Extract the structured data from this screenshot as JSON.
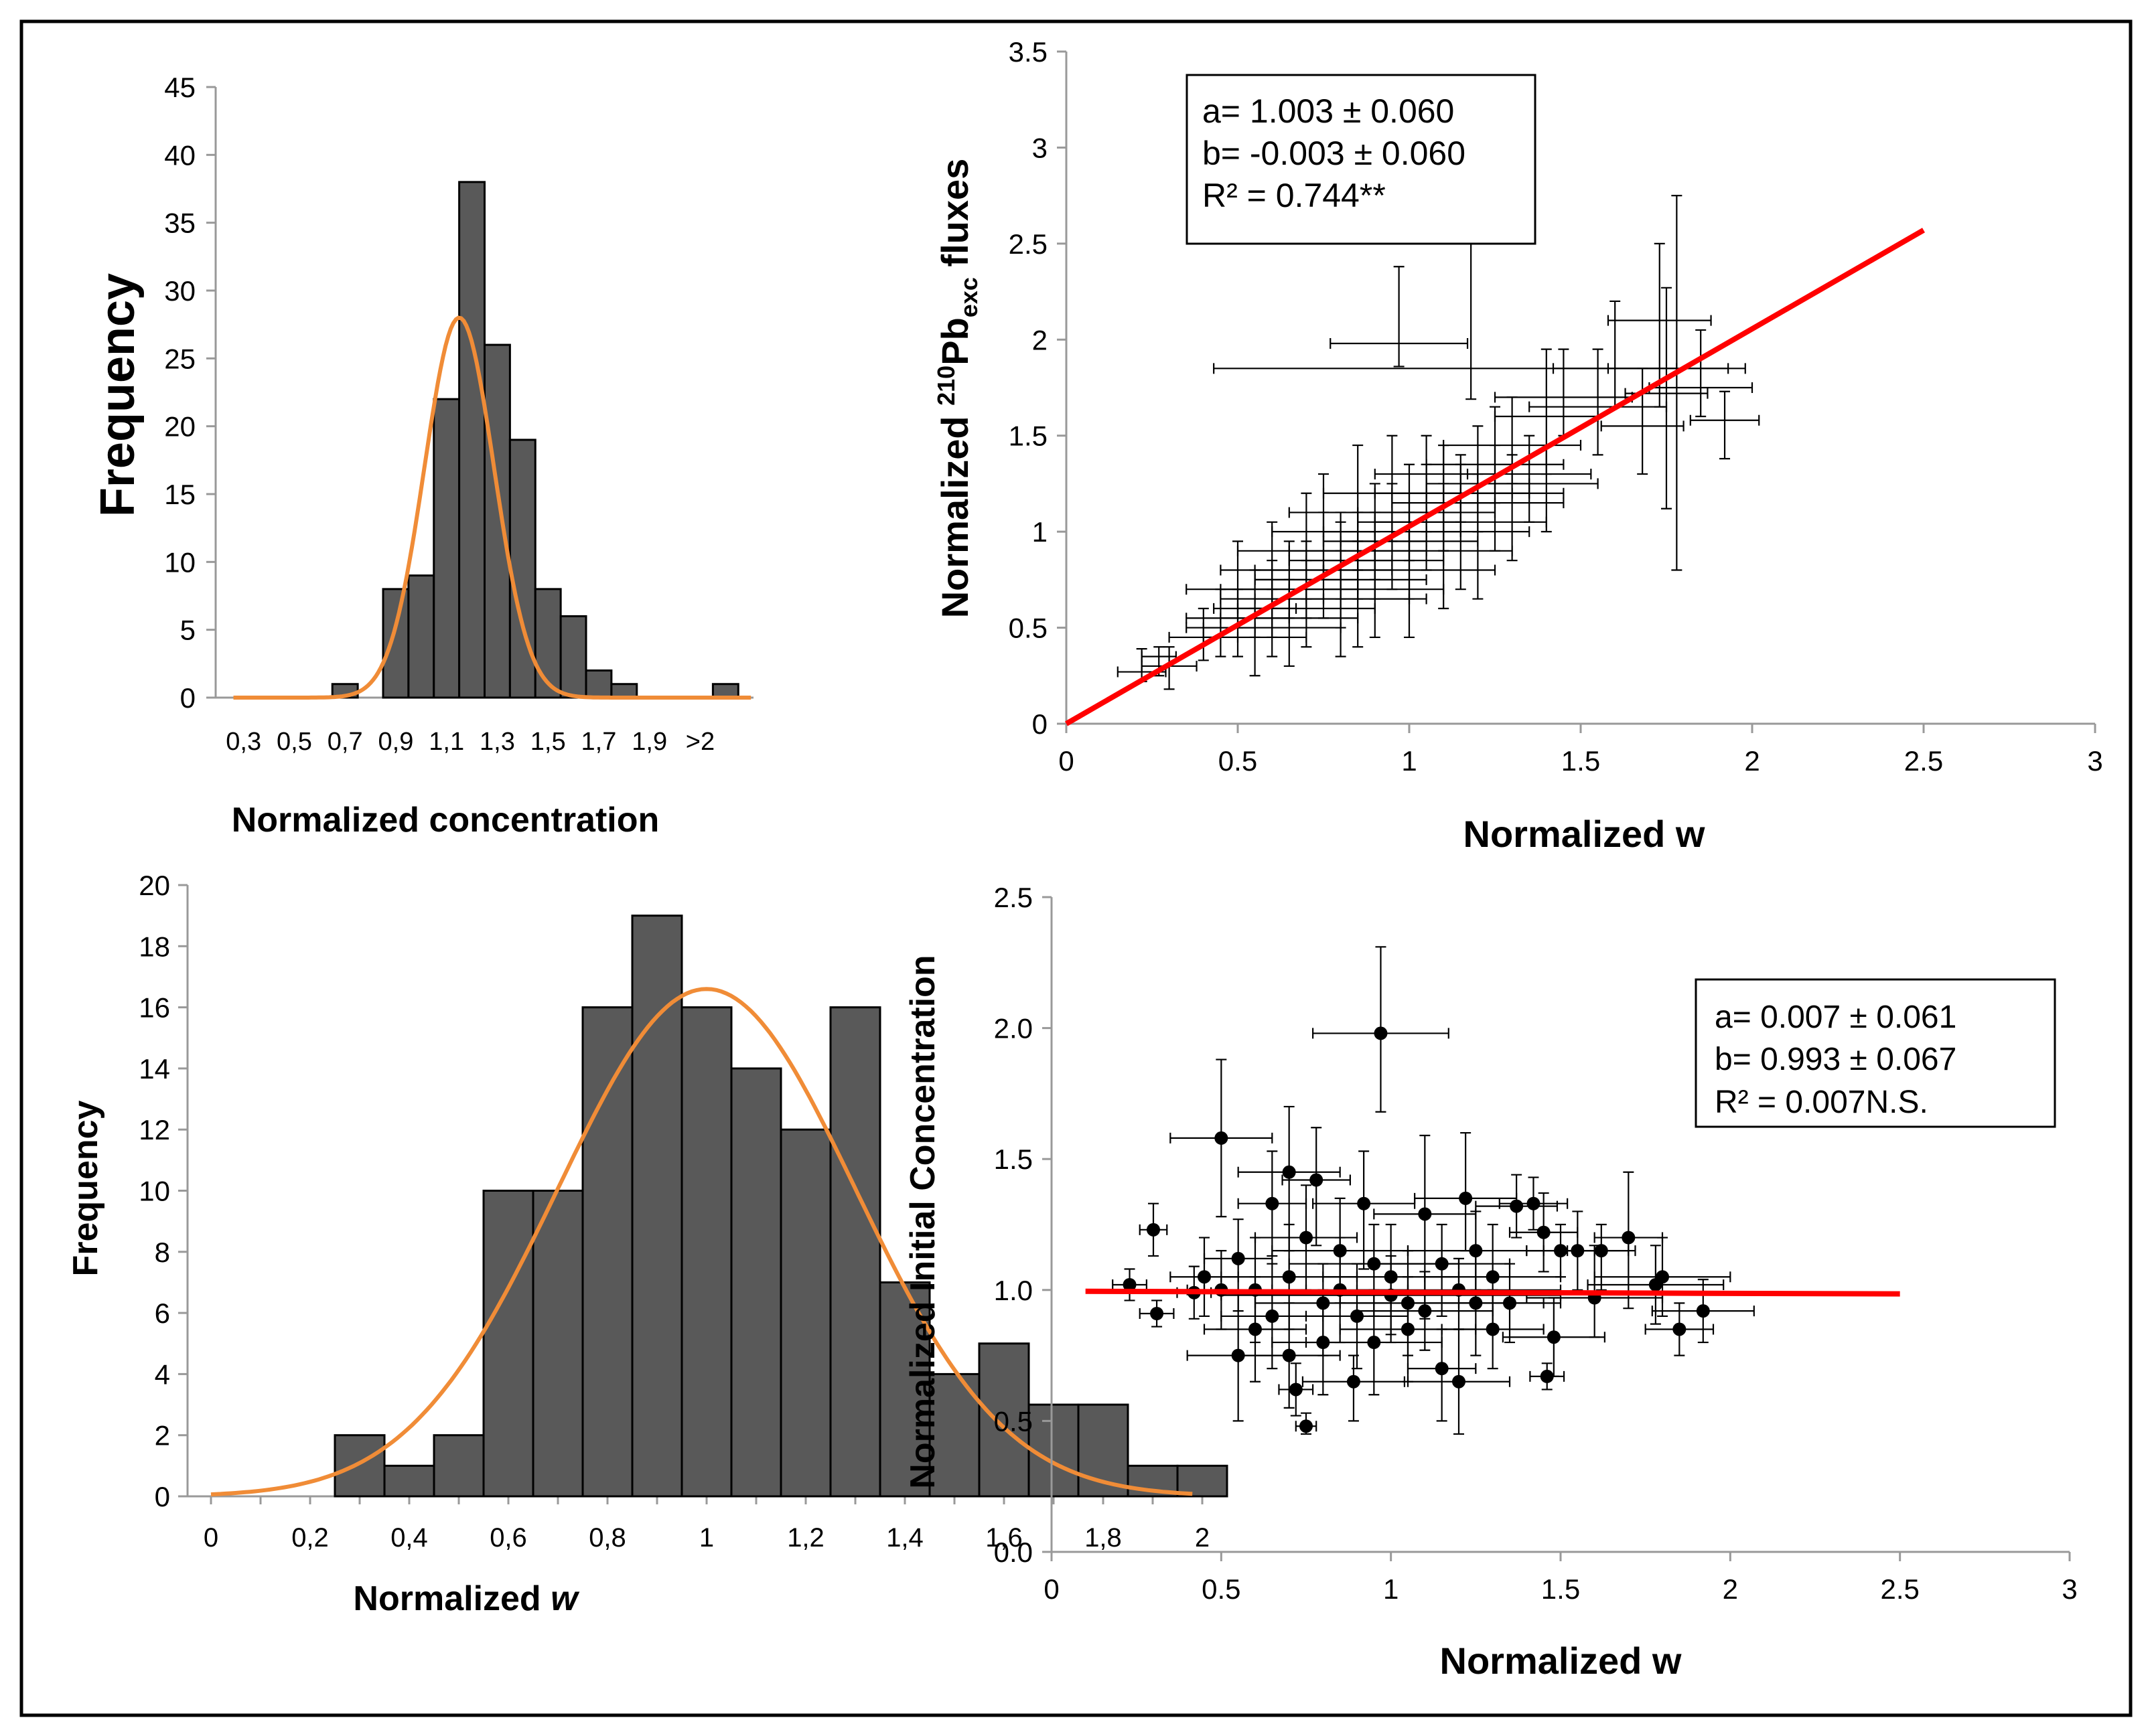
{
  "chart_data": [
    {
      "id": "hist-concentration",
      "type": "bar",
      "title": "",
      "xlabel": "Normalized concentration",
      "ylabel": "Frequency",
      "ylim": [
        0,
        45
      ],
      "yticks": [
        0,
        5,
        10,
        15,
        20,
        25,
        30,
        35,
        40,
        45
      ],
      "xtick_labels": [
        "0,3",
        "0,5",
        "0,7",
        "0,9",
        "1,1",
        "1,3",
        "1,5",
        "1,7",
        "1,9",
        ">2"
      ],
      "bin_start": 0.3,
      "bin_width": 0.1,
      "values": [
        0,
        0,
        0,
        0,
        1,
        0,
        8,
        9,
        22,
        38,
        26,
        19,
        8,
        6,
        2,
        1,
        0,
        0,
        0,
        1
      ],
      "curve_color": "#F08C37",
      "curve": {
        "mean": 1.2,
        "sd": 0.137,
        "peak": 28
      },
      "bar_color": "#595959"
    },
    {
      "id": "hist-w",
      "type": "bar",
      "title": "",
      "xlabel": "Normalized w",
      "ylabel": "Frequency",
      "ylim": [
        0,
        20
      ],
      "yticks": [
        0,
        2,
        4,
        6,
        8,
        10,
        12,
        14,
        16,
        18,
        20
      ],
      "xtick_labels": [
        "0",
        "0,2",
        "0,4",
        "0,6",
        "0,8",
        "1",
        "1,2",
        "1,4",
        "1,6",
        "1,8",
        "2"
      ],
      "bin_start": 0.25,
      "bin_width": 0.1,
      "values": [
        2,
        1,
        2,
        10,
        10,
        16,
        19,
        16,
        14,
        12,
        16,
        7,
        4,
        5,
        3,
        3,
        1,
        1
      ],
      "curve_color": "#F08C37",
      "curve": {
        "mean": 1.0,
        "sd": 0.3,
        "peak": 16.6
      },
      "bar_color": "#595959"
    },
    {
      "id": "scatter-fluxes",
      "type": "scatter",
      "title": "",
      "xlabel": "Normalized w",
      "ylabel": "Normalized 210Pbexc fluxes",
      "xlim": [
        0,
        3
      ],
      "ylim": [
        0,
        3.5
      ],
      "xticks": [
        "0",
        "0.5",
        "1",
        "1.5",
        "2",
        "2.5",
        "3"
      ],
      "yticks": [
        "0",
        "0.5",
        "1",
        "1.5",
        "2",
        "2.5",
        "3",
        "3.5"
      ],
      "fit_line": {
        "x": [
          0,
          2.5
        ],
        "y": [
          0,
          2.57
        ],
        "color": "#FF0000"
      },
      "annotation": [
        "a= 1.003 ± 0.060",
        "b= -0.003 ± 0.060",
        "R² = 0.744**"
      ],
      "points": [
        [
          0.97,
          1.98,
          0.2,
          0.4,
          0.12
        ],
        [
          1.18,
          1.85,
          0.75,
          0.7,
          0.16
        ],
        [
          1.78,
          1.85,
          0.2,
          0.9,
          1.05
        ],
        [
          1.73,
          2.1,
          0.15,
          0.4,
          0.45
        ],
        [
          1.75,
          1.72,
          0.12,
          0.55,
          0.6
        ],
        [
          1.6,
          1.85,
          0.18,
          0.35,
          0.2
        ],
        [
          1.85,
          1.75,
          0.15,
          0.3,
          0.15
        ],
        [
          1.55,
          1.65,
          0.2,
          0.3,
          0.25
        ],
        [
          1.45,
          1.7,
          0.2,
          0.25,
          0.2
        ],
        [
          1.4,
          1.6,
          0.15,
          0.35,
          0.3
        ],
        [
          1.68,
          1.55,
          0.12,
          0.3,
          0.25
        ],
        [
          1.92,
          1.58,
          0.1,
          0.15,
          0.2
        ],
        [
          1.3,
          1.45,
          0.2,
          0.25,
          0.2
        ],
        [
          1.35,
          1.3,
          0.18,
          0.2,
          0.25
        ],
        [
          1.25,
          1.35,
          0.2,
          0.3,
          0.2
        ],
        [
          1.2,
          1.25,
          0.15,
          0.3,
          0.25
        ],
        [
          1.15,
          1.2,
          0.2,
          0.2,
          0.15
        ],
        [
          1.1,
          1.15,
          0.15,
          0.3,
          0.25
        ],
        [
          1.05,
          1.1,
          0.2,
          0.25,
          0.3
        ],
        [
          1.0,
          1.05,
          0.15,
          0.3,
          0.2
        ],
        [
          0.95,
          1.0,
          0.2,
          0.25,
          0.3
        ],
        [
          0.9,
          0.95,
          0.15,
          0.3,
          0.2
        ],
        [
          0.85,
          0.9,
          0.2,
          0.2,
          0.25
        ],
        [
          0.8,
          0.85,
          0.15,
          0.25,
          0.2
        ],
        [
          0.75,
          0.8,
          0.2,
          0.3,
          0.25
        ],
        [
          0.7,
          0.75,
          0.15,
          0.2,
          0.2
        ],
        [
          0.65,
          0.7,
          0.2,
          0.25,
          0.15
        ],
        [
          0.6,
          0.65,
          0.15,
          0.2,
          0.2
        ],
        [
          0.55,
          0.6,
          0.12,
          0.2,
          0.15
        ],
        [
          0.5,
          0.55,
          0.15,
          0.15,
          0.2
        ],
        [
          0.45,
          0.5,
          0.1,
          0.2,
          0.15
        ],
        [
          0.4,
          0.45,
          0.1,
          0.15,
          0.12
        ],
        [
          0.3,
          0.3,
          0.08,
          0.1,
          0.12
        ],
        [
          0.27,
          0.35,
          0.05,
          0.05,
          0.1
        ],
        [
          0.22,
          0.27,
          0.07,
          0.12,
          0.05
        ],
        [
          1.0,
          0.8,
          0.25,
          0.3,
          0.35
        ],
        [
          0.9,
          0.7,
          0.2,
          0.3,
          0.25
        ],
        [
          0.8,
          0.65,
          0.25,
          0.25,
          0.3
        ],
        [
          1.1,
          0.9,
          0.2,
          0.35,
          0.3
        ],
        [
          1.2,
          1.0,
          0.15,
          0.3,
          0.35
        ],
        [
          1.3,
          1.15,
          0.15,
          0.25,
          0.3
        ],
        [
          0.7,
          0.9,
          0.2,
          0.3,
          0.25
        ],
        [
          0.6,
          0.8,
          0.15,
          0.25,
          0.2
        ],
        [
          0.85,
          1.1,
          0.2,
          0.35,
          0.3
        ],
        [
          0.75,
          1.0,
          0.15,
          0.3,
          0.25
        ],
        [
          1.05,
          1.3,
          0.15,
          0.2,
          0.3
        ],
        [
          0.95,
          1.2,
          0.2,
          0.3,
          0.25
        ],
        [
          0.65,
          0.55,
          0.2,
          0.2,
          0.25
        ],
        [
          0.55,
          0.45,
          0.15,
          0.15,
          0.2
        ],
        [
          0.5,
          0.7,
          0.15,
          0.25,
          0.2
        ],
        [
          1.15,
          1.05,
          0.25,
          0.3,
          0.35
        ],
        [
          1.25,
          1.2,
          0.2,
          0.25,
          0.3
        ],
        [
          1.4,
          1.25,
          0.15,
          0.2,
          0.25
        ],
        [
          0.8,
          0.75,
          0.25,
          0.3,
          0.25
        ],
        [
          0.9,
          0.85,
          0.2,
          0.25,
          0.2
        ],
        [
          1.0,
          0.95,
          0.2,
          0.25,
          0.3
        ],
        [
          0.7,
          0.6,
          0.2,
          0.25,
          0.2
        ],
        [
          0.6,
          0.5,
          0.2,
          0.2,
          0.15
        ],
        [
          1.1,
          1.2,
          0.2,
          0.25,
          0.3
        ],
        [
          0.85,
          0.65,
          0.15,
          0.3,
          0.25
        ]
      ]
    },
    {
      "id": "scatter-concentration",
      "type": "scatter",
      "title": "",
      "xlabel": "Normalized w",
      "ylabel": "Normalized Initial Concentration",
      "xlim": [
        0,
        3
      ],
      "ylim": [
        0,
        2.5
      ],
      "xticks": [
        "0",
        "0.5",
        "1",
        "1.5",
        "2",
        "2.5",
        "3"
      ],
      "yticks": [
        "0.0",
        "0.5",
        "1.0",
        "1.5",
        "2.0",
        "2.5"
      ],
      "fit_line": {
        "x": [
          0.1,
          2.5
        ],
        "y": [
          0.995,
          0.985
        ],
        "color": "#FF0000"
      },
      "annotation": [
        "a= 0.007 ± 0.061",
        "b= 0.993 ± 0.067",
        "R² = 0.007N.S."
      ],
      "points": [
        [
          0.97,
          1.98,
          0.2,
          0.33,
          0.3
        ],
        [
          0.5,
          1.58,
          0.15,
          0.3,
          0.3
        ],
        [
          0.7,
          1.45,
          0.15,
          0.25,
          0.3
        ],
        [
          0.78,
          1.42,
          0.1,
          0.2,
          0.25
        ],
        [
          0.3,
          1.23,
          0.04,
          0.1,
          0.1
        ],
        [
          0.23,
          1.02,
          0.05,
          0.06,
          0.06
        ],
        [
          0.31,
          0.91,
          0.05,
          0.05,
          0.05
        ],
        [
          0.42,
          0.99,
          0.05,
          0.1,
          0.1
        ],
        [
          0.55,
          1.12,
          0.1,
          0.15,
          0.2
        ],
        [
          0.6,
          1.0,
          0.15,
          0.2,
          0.2
        ],
        [
          0.65,
          1.33,
          0.1,
          0.2,
          0.2
        ],
        [
          0.75,
          0.48,
          0.03,
          0.05,
          0.03
        ],
        [
          0.72,
          0.62,
          0.05,
          0.1,
          0.1
        ],
        [
          0.8,
          0.8,
          0.15,
          0.2,
          0.2
        ],
        [
          0.85,
          1.0,
          0.2,
          0.2,
          0.2
        ],
        [
          0.9,
          0.9,
          0.15,
          0.2,
          0.2
        ],
        [
          0.92,
          1.33,
          0.15,
          0.2,
          0.25
        ],
        [
          1.0,
          1.05,
          0.2,
          0.2,
          0.25
        ],
        [
          1.05,
          0.95,
          0.2,
          0.2,
          0.2
        ],
        [
          1.1,
          1.29,
          0.15,
          0.3,
          0.4
        ],
        [
          1.15,
          0.7,
          0.1,
          0.15,
          0.2
        ],
        [
          1.2,
          0.65,
          0.15,
          0.2,
          0.2
        ],
        [
          1.22,
          1.35,
          0.15,
          0.25,
          0.2
        ],
        [
          1.25,
          0.95,
          0.2,
          0.2,
          0.2
        ],
        [
          1.3,
          1.05,
          0.2,
          0.2,
          0.2
        ],
        [
          1.37,
          1.32,
          0.12,
          0.12,
          0.12
        ],
        [
          1.42,
          1.33,
          0.1,
          0.1,
          0.1
        ],
        [
          1.45,
          1.22,
          0.1,
          0.15,
          0.15
        ],
        [
          1.48,
          0.82,
          0.15,
          0.15,
          0.15
        ],
        [
          1.5,
          1.15,
          0.1,
          0.1,
          0.1
        ],
        [
          1.55,
          1.15,
          0.15,
          0.15,
          0.15
        ],
        [
          1.6,
          0.97,
          0.2,
          0.2,
          0.15
        ],
        [
          1.62,
          1.15,
          0.1,
          0.1,
          0.15
        ],
        [
          1.7,
          1.2,
          0.1,
          0.25,
          0.27
        ],
        [
          1.78,
          1.02,
          0.2,
          0.15,
          0.15
        ],
        [
          1.8,
          1.05,
          0.2,
          0.15,
          0.15
        ],
        [
          1.85,
          0.85,
          0.1,
          0.1,
          0.1
        ],
        [
          1.92,
          0.92,
          0.15,
          0.12,
          0.12
        ],
        [
          0.89,
          0.65,
          0.15,
          0.1,
          0.15
        ],
        [
          1.46,
          0.67,
          0.05,
          0.05,
          0.05
        ],
        [
          1.0,
          0.98,
          0.5,
          0.15,
          0.15
        ],
        [
          1.2,
          1.0,
          0.3,
          0.12,
          0.15
        ],
        [
          0.95,
          1.1,
          0.25,
          0.15,
          0.2
        ],
        [
          0.85,
          1.15,
          0.2,
          0.2,
          0.2
        ],
        [
          0.7,
          1.05,
          0.2,
          0.2,
          0.2
        ],
        [
          0.65,
          0.9,
          0.15,
          0.2,
          0.2
        ],
        [
          0.55,
          0.75,
          0.15,
          0.25,
          0.25
        ],
        [
          0.6,
          0.85,
          0.15,
          0.2,
          0.2
        ],
        [
          1.15,
          1.1,
          0.2,
          0.15,
          0.2
        ],
        [
          1.05,
          0.85,
          0.2,
          0.2,
          0.2
        ],
        [
          1.25,
          1.15,
          0.2,
          0.15,
          0.15
        ],
        [
          1.35,
          0.95,
          0.15,
          0.15,
          0.15
        ],
        [
          0.8,
          0.95,
          0.2,
          0.15,
          0.2
        ],
        [
          0.75,
          1.2,
          0.15,
          0.2,
          0.2
        ],
        [
          0.95,
          0.8,
          0.2,
          0.2,
          0.2
        ],
        [
          1.1,
          0.92,
          0.2,
          0.15,
          0.15
        ],
        [
          0.5,
          1.0,
          0.1,
          0.15,
          0.15
        ],
        [
          0.45,
          1.05,
          0.1,
          0.15,
          0.15
        ],
        [
          1.3,
          0.85,
          0.15,
          0.15,
          0.15
        ],
        [
          0.7,
          0.75,
          0.15,
          0.2,
          0.2
        ]
      ]
    }
  ]
}
